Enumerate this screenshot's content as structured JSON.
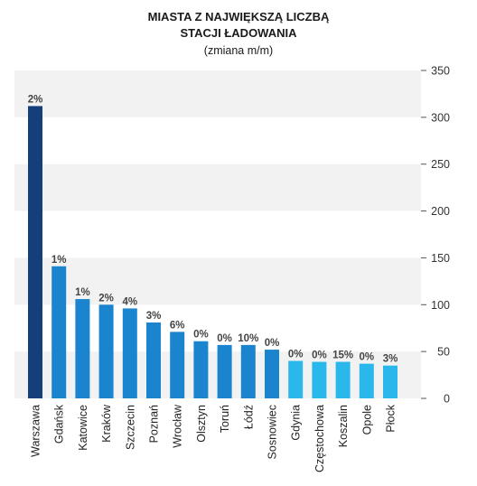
{
  "chart_data": {
    "type": "bar",
    "title_line1": "MIASTA Z NAJWIĘKSZĄ LICZBĄ",
    "title_line2": "STACJI ŁADOWANIA",
    "subtitle": "(zmiana m/m)",
    "categories": [
      "Warszawa",
      "Gdańsk",
      "Katowice",
      "Kraków",
      "Szczecin",
      "Poznań",
      "Wrocław",
      "Olsztyn",
      "Toruń",
      "Łódź",
      "Sosnowiec",
      "Gdynia",
      "Częstochowa",
      "Koszalin",
      "Opole",
      "Płock"
    ],
    "values": [
      312,
      141,
      106,
      100,
      96,
      81,
      71,
      61,
      57,
      57,
      52,
      40,
      39,
      39,
      37,
      35
    ],
    "data_labels": [
      "2%",
      "1%",
      "1%",
      "2%",
      "4%",
      "3%",
      "6%",
      "0%",
      "0%",
      "10%",
      "0%",
      "0%",
      "0%",
      "15%",
      "0%",
      "3%"
    ],
    "bar_colors": [
      "#143f7a",
      "#1b84cf",
      "#1b84cf",
      "#1b84cf",
      "#1b84cf",
      "#1b84cf",
      "#1b84cf",
      "#1b84cf",
      "#1b84cf",
      "#1b84cf",
      "#1b84cf",
      "#2ab7ec",
      "#2ab7ec",
      "#2ab7ec",
      "#2ab7ec",
      "#2ab7ec"
    ],
    "yticks": [
      0,
      50,
      100,
      150,
      200,
      250,
      300,
      350
    ],
    "ylim": [
      0,
      350
    ],
    "y_axis_position": "right",
    "band_color": "#f2f2f2",
    "grid": "alternating bands"
  }
}
